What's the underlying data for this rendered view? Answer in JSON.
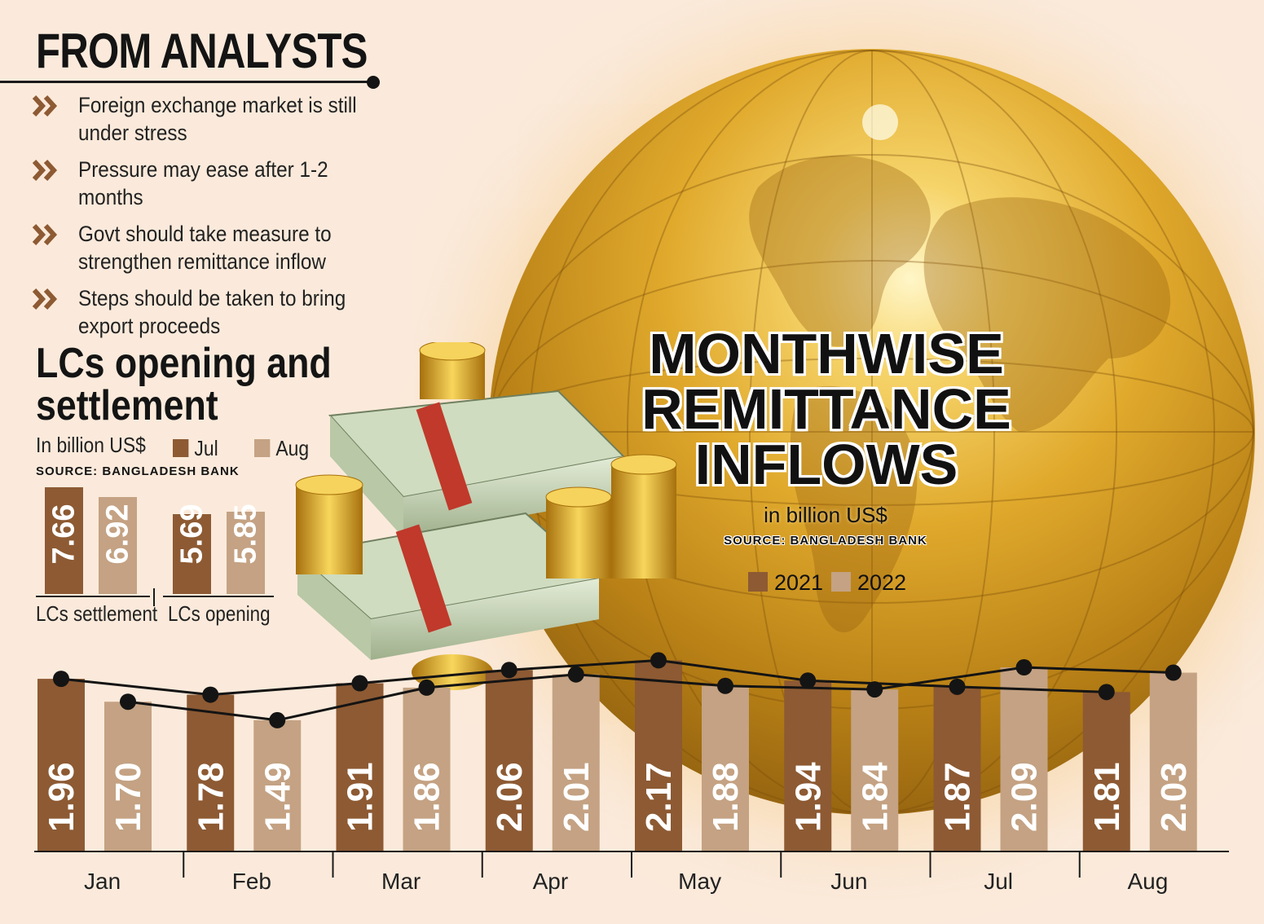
{
  "analysts": {
    "heading": "FROM ANALYSTS",
    "points": [
      "Foreign exchange market is still under stress",
      "Pressure may ease after 1-2 months",
      "Govt should take measure to strengthen remittance inflow",
      "Steps should be taken to bring export proceeds"
    ]
  },
  "lc": {
    "title_line1": "LCs opening and",
    "title_line2": "settlement",
    "unit": "In billion US$",
    "legend": [
      "Jul",
      "Aug"
    ],
    "source": "SOURCE: BANGLADESH BANK"
  },
  "remittance": {
    "title_line1": "MONTHWISE",
    "title_line2": "REMITTANCE",
    "title_line3": "INFLOWS",
    "unit": "in billion US$",
    "source": "SOURCE: BANGLADESH BANK",
    "legend": [
      "2021",
      "2022"
    ]
  },
  "colors": {
    "dark": "#8d5a33",
    "light": "#c4a283",
    "background": "#fbeadb",
    "line": "#141414"
  },
  "chart_data": [
    {
      "type": "bar",
      "title": "LCs opening and settlement",
      "ylabel": "In billion US$",
      "categories": [
        "LCs settlement",
        "LCs opening"
      ],
      "series": [
        {
          "name": "Jul",
          "values": [
            7.66,
            5.69
          ]
        },
        {
          "name": "Aug",
          "values": [
            6.92,
            5.85
          ]
        }
      ],
      "legend": "top"
    },
    {
      "type": "bar",
      "title": "MONTHWISE REMITTANCE INFLOWS",
      "ylabel": "in billion US$",
      "categories": [
        "Jan",
        "Feb",
        "Mar",
        "Apr",
        "May",
        "Jun",
        "Jul",
        "Aug"
      ],
      "series": [
        {
          "name": "2021",
          "values": [
            1.96,
            1.78,
            1.91,
            2.06,
            2.17,
            1.94,
            1.87,
            1.81
          ]
        },
        {
          "name": "2022",
          "values": [
            1.7,
            1.49,
            1.86,
            2.01,
            1.88,
            1.84,
            2.09,
            2.03
          ]
        }
      ],
      "overlay": "line connecting bar tops for each series",
      "legend": "center"
    }
  ]
}
